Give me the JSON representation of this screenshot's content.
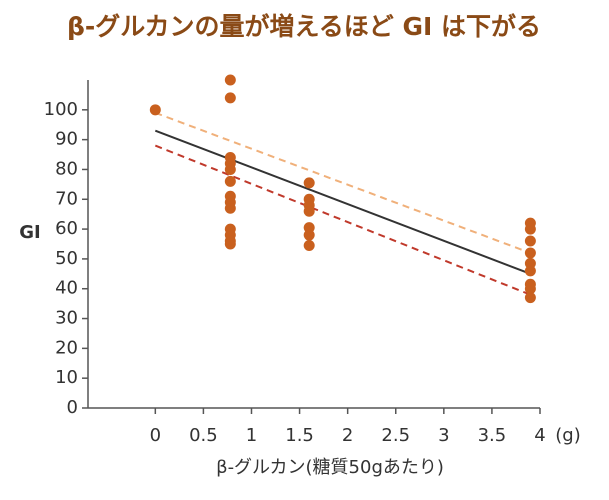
{
  "chart_data": {
    "type": "scatter",
    "title": "β-グルカンの量が増えるほど GI は下がる",
    "x_label": "β-グルカン(糖質50gあたり)",
    "x_unit": "(g)",
    "y_label": "GI",
    "xlim": [
      -0.7,
      4
    ],
    "ylim": [
      0,
      110
    ],
    "xticks": [
      0,
      0.5,
      1,
      1.5,
      2,
      2.5,
      3,
      3.5,
      4
    ],
    "yticks": [
      0,
      10,
      20,
      30,
      40,
      50,
      60,
      70,
      80,
      90,
      100
    ],
    "color": "#c9601e",
    "x": [
      0,
      0.78,
      0.78,
      0.78,
      0.78,
      0.78,
      0.78,
      0.78,
      0.78,
      0.78,
      0.78,
      0.78,
      0.78,
      0.78,
      1.6,
      1.6,
      1.6,
      1.6,
      1.6,
      1.6,
      1.6,
      3.9,
      3.9,
      3.9,
      3.9,
      3.9,
      3.9,
      3.9,
      3.9,
      3.9
    ],
    "y": [
      100,
      110,
      104,
      84,
      82,
      80,
      76,
      71,
      69,
      67,
      60,
      58,
      56,
      55,
      75.5,
      70,
      68,
      66,
      60.5,
      58,
      54.5,
      62,
      60,
      56,
      52,
      48.5,
      46,
      41.5,
      40,
      37
    ],
    "lines": [
      {
        "color": "#f0b07a",
        "dash": true,
        "x": [
          0,
          3.9
        ],
        "y": [
          99,
          52
        ]
      },
      {
        "color": "#333333",
        "dash": false,
        "x": [
          0,
          3.9
        ],
        "y": [
          93,
          45
        ]
      },
      {
        "color": "#c0392b",
        "dash": true,
        "x": [
          0,
          3.9
        ],
        "y": [
          88,
          38
        ]
      }
    ]
  }
}
